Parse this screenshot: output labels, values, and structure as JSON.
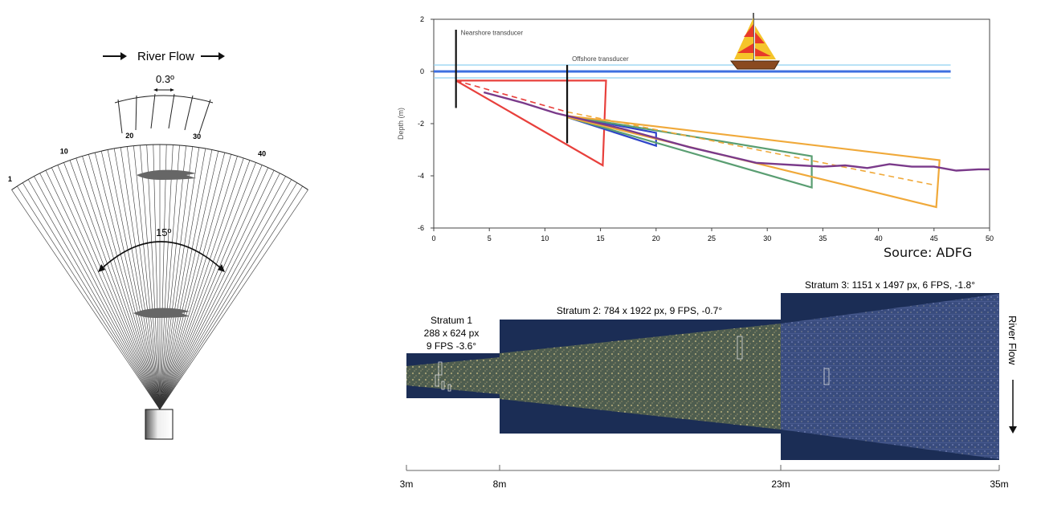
{
  "fan": {
    "flow_label": "River Flow",
    "inset_angle": "0.3º",
    "beam_angle": "15º",
    "beam_numbers": [
      "1",
      "10",
      "20",
      "30",
      "40"
    ]
  },
  "chart_data": {
    "type": "line",
    "xlabel": "",
    "ylabel": "Depth (m)",
    "xlim": [
      0,
      50
    ],
    "ylim": [
      -6,
      2
    ],
    "xticks": [
      0,
      5,
      10,
      15,
      20,
      25,
      30,
      35,
      40,
      45,
      50
    ],
    "yticks": [
      2,
      0,
      -2,
      -4,
      -6
    ],
    "water_surface": 0,
    "annotations": [
      {
        "text": "Nearshore transducer",
        "x": 2,
        "y": 1.5
      },
      {
        "text": "Offshore transducer",
        "x": 12,
        "y": 0.5
      }
    ],
    "transducers": [
      {
        "name": "Nearshore transducer",
        "x": 2,
        "y_top": 1.6,
        "y_bottom": -1.4
      },
      {
        "name": "Offshore transducer",
        "x": 12,
        "y_top": 0.25,
        "y_bottom": -2.75
      }
    ],
    "beams": [
      {
        "color": "#e8403c",
        "points": [
          [
            2,
            -0.35
          ],
          [
            15.5,
            -0.35
          ],
          [
            15.2,
            -3.6
          ],
          [
            2,
            -0.35
          ]
        ]
      },
      {
        "color": "#2f45c8",
        "points": [
          [
            12,
            -1.7
          ],
          [
            20,
            -2.35
          ],
          [
            20,
            -2.85
          ],
          [
            12,
            -1.75
          ]
        ]
      },
      {
        "color": "#5a9e72",
        "points": [
          [
            12,
            -1.7
          ],
          [
            34,
            -3.25
          ],
          [
            34,
            -4.45
          ],
          [
            12,
            -1.75
          ]
        ]
      },
      {
        "color": "#f0a93a",
        "points": [
          [
            12,
            -1.7
          ],
          [
            45.5,
            -3.4
          ],
          [
            45.2,
            -5.2
          ],
          [
            12,
            -1.75
          ]
        ]
      }
    ],
    "dashed_lines": [
      {
        "color": "#e8403c",
        "points": [
          [
            2,
            -0.35
          ],
          [
            12,
            -1.55
          ]
        ]
      },
      {
        "color": "#f0a93a",
        "points": [
          [
            12,
            -1.55
          ],
          [
            45,
            -4.35
          ]
        ]
      }
    ],
    "bottom_profile": {
      "color": "#7a3a8a",
      "points": [
        [
          4.5,
          -0.8
        ],
        [
          8,
          -1.2
        ],
        [
          11,
          -1.6
        ],
        [
          14,
          -1.9
        ],
        [
          17,
          -2.2
        ],
        [
          20,
          -2.55
        ],
        [
          23,
          -2.9
        ],
        [
          26,
          -3.2
        ],
        [
          29,
          -3.5
        ],
        [
          31,
          -3.55
        ],
        [
          33,
          -3.6
        ],
        [
          35,
          -3.65
        ],
        [
          37,
          -3.6
        ],
        [
          39,
          -3.7
        ],
        [
          41,
          -3.55
        ],
        [
          43,
          -3.65
        ],
        [
          45,
          -3.65
        ],
        [
          47,
          -3.8
        ],
        [
          49,
          -3.75
        ],
        [
          50,
          -3.75
        ]
      ]
    }
  },
  "source_label": "Source: ADFG",
  "sonar": {
    "flow_label": "River Flow",
    "strata": [
      {
        "title": "Stratum 1",
        "line2": "288 x 624 px",
        "line3": "9 FPS   -3.6°"
      },
      {
        "title": "Stratum 2:   784 x 1922 px,    9 FPS,    -0.7°"
      },
      {
        "title": "Stratum 3:    1151 x 1497 px,    6 FPS,   -1.8°"
      }
    ],
    "scale_labels": [
      "3m",
      "8m",
      "23m",
      "35m"
    ]
  },
  "colors": {
    "sonar_bg": "#1b2d55",
    "sonar_fill_warm": "#8a8a5a",
    "sonar_fill_cool": "#5a6aa0",
    "water_line": "#3e6fe0",
    "water_line_light": "#8fd0f0"
  }
}
